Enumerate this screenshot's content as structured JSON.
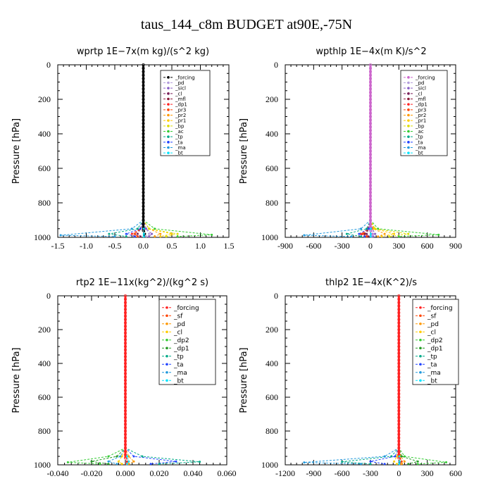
{
  "figure": {
    "title": "taus_144_c8m  BUDGET at90E,-75N"
  },
  "chart_data": [
    {
      "type": "line",
      "title": "wprtp  1E−7x(m kg)/(s^2 kg)",
      "ylabel": "Pressure [hPa]",
      "xlim": [
        -1.5,
        1.5
      ],
      "ylim": [
        1000,
        0
      ],
      "xticks": [
        "-1.5",
        "-1.0",
        "-0.5",
        "0.0",
        "0.5",
        "1.0",
        "1.5"
      ],
      "xtick_values": [
        -1.5,
        -1.0,
        -0.5,
        0.0,
        0.5,
        1.0,
        1.5
      ],
      "yticks": [
        "0",
        "200",
        "400",
        "600",
        "800",
        "1000"
      ],
      "ytick_values": [
        0,
        200,
        400,
        600,
        800,
        1000
      ],
      "legend_position": "top-right",
      "series": [
        {
          "name": "_forcing",
          "color": "#000000",
          "x": [
            0,
            0,
            0.02,
            0.03,
            0.02
          ],
          "y": [
            0,
            900,
            950,
            980,
            995
          ]
        },
        {
          "name": "_pd",
          "color": "#b39ddb",
          "x": [
            0,
            0,
            0.05,
            0.1,
            0.05
          ],
          "y": [
            0,
            900,
            950,
            980,
            995
          ]
        },
        {
          "name": "_sicl",
          "color": "#8a60c8",
          "x": [
            0,
            0,
            0.05,
            0.15,
            0.1
          ],
          "y": [
            0,
            900,
            950,
            980,
            995
          ]
        },
        {
          "name": "_cl",
          "color": "#7a1f5a",
          "x": [
            0,
            0,
            -0.05,
            -0.1,
            -0.05
          ],
          "y": [
            0,
            900,
            950,
            980,
            995
          ]
        },
        {
          "name": "_mfl",
          "color": "#8b1a3a",
          "x": [
            0,
            0,
            -0.05,
            -0.15,
            -0.1
          ],
          "y": [
            0,
            900,
            950,
            980,
            995
          ]
        },
        {
          "name": "_dp1",
          "color": "#ff2222",
          "x": [
            0,
            0,
            -0.05,
            -0.2,
            -0.15
          ],
          "y": [
            0,
            900,
            950,
            980,
            995
          ]
        },
        {
          "name": "_pr3",
          "color": "#ff4400",
          "x": [
            0,
            0,
            -0.05,
            -0.15,
            -0.1
          ],
          "y": [
            0,
            900,
            950,
            980,
            995
          ]
        },
        {
          "name": "_pr2",
          "color": "#ff9900",
          "x": [
            0,
            0,
            0.1,
            0.3,
            0.2
          ],
          "y": [
            0,
            900,
            950,
            980,
            995
          ]
        },
        {
          "name": "_pr1",
          "color": "#ffcc00",
          "x": [
            0,
            0,
            0.1,
            0.5,
            0.3
          ],
          "y": [
            0,
            900,
            950,
            980,
            995
          ]
        },
        {
          "name": "_bp",
          "color": "#dddd00",
          "x": [
            0,
            0,
            0.1,
            0.6,
            0.4
          ],
          "y": [
            0,
            900,
            950,
            980,
            995
          ]
        },
        {
          "name": "_ac",
          "color": "#33cc33",
          "x": [
            0,
            0,
            0.2,
            1.2,
            0.6
          ],
          "y": [
            0,
            900,
            950,
            985,
            995
          ]
        },
        {
          "name": "_tp",
          "color": "#00aa88",
          "x": [
            0,
            0,
            -0.1,
            -0.6,
            -0.3
          ],
          "y": [
            0,
            900,
            950,
            980,
            995
          ]
        },
        {
          "name": "_ta",
          "color": "#2244ff",
          "x": [
            0,
            0,
            -0.05,
            -0.3,
            -0.15
          ],
          "y": [
            0,
            900,
            950,
            980,
            995
          ]
        },
        {
          "name": "_ma",
          "color": "#2299dd",
          "x": [
            0,
            0,
            -0.2,
            -1.45,
            -0.5
          ],
          "y": [
            0,
            900,
            950,
            988,
            995
          ]
        },
        {
          "name": "_bt",
          "color": "#00e5ff",
          "x": [
            0,
            0,
            0.01,
            0.01,
            0.01
          ],
          "y": [
            0,
            900,
            950,
            980,
            995
          ]
        }
      ]
    },
    {
      "type": "line",
      "title": "wpthlp  1E−4x(m K)/s^2",
      "ylabel": "Pressure [hPa]",
      "xlim": [
        -900,
        900
      ],
      "ylim": [
        1000,
        0
      ],
      "xticks": [
        "-900",
        "-600",
        "-300",
        "0",
        "300",
        "600",
        "900"
      ],
      "xtick_values": [
        -900,
        -600,
        -300,
        0,
        300,
        600,
        900
      ],
      "yticks": [
        "0",
        "200",
        "400",
        "600",
        "800",
        "1000"
      ],
      "ytick_values": [
        0,
        200,
        400,
        600,
        800,
        1000
      ],
      "legend_position": "top-right",
      "series": [
        {
          "name": "_forcing",
          "color": "#cc66cc",
          "x": [
            0,
            0,
            10,
            20,
            10
          ],
          "y": [
            0,
            900,
            950,
            980,
            995
          ]
        },
        {
          "name": "_pd",
          "color": "#b39ddb",
          "x": [
            0,
            0,
            20,
            40,
            20
          ],
          "y": [
            0,
            900,
            950,
            980,
            995
          ]
        },
        {
          "name": "_sicl",
          "color": "#8a60c8",
          "x": [
            0,
            0,
            20,
            50,
            30
          ],
          "y": [
            0,
            900,
            950,
            980,
            995
          ]
        },
        {
          "name": "_cl",
          "color": "#7a1f5a",
          "x": [
            0,
            0,
            -20,
            -40,
            -20
          ],
          "y": [
            0,
            900,
            950,
            980,
            995
          ]
        },
        {
          "name": "_mfl",
          "color": "#8b1a3a",
          "x": [
            0,
            0,
            -20,
            -60,
            -30
          ],
          "y": [
            0,
            900,
            950,
            980,
            995
          ]
        },
        {
          "name": "_dp1",
          "color": "#ff2222",
          "x": [
            0,
            0,
            -30,
            -100,
            -60
          ],
          "y": [
            0,
            900,
            950,
            980,
            995
          ]
        },
        {
          "name": "_pr3",
          "color": "#ff4400",
          "x": [
            0,
            0,
            -20,
            -80,
            -40
          ],
          "y": [
            0,
            900,
            950,
            980,
            995
          ]
        },
        {
          "name": "_pr2",
          "color": "#ff9900",
          "x": [
            0,
            0,
            30,
            150,
            80
          ],
          "y": [
            0,
            900,
            950,
            980,
            995
          ]
        },
        {
          "name": "_pr1",
          "color": "#ffcc00",
          "x": [
            0,
            0,
            40,
            250,
            120
          ],
          "y": [
            0,
            900,
            950,
            980,
            995
          ]
        },
        {
          "name": "_bp",
          "color": "#dddd00",
          "x": [
            0,
            0,
            50,
            400,
            200
          ],
          "y": [
            0,
            900,
            950,
            980,
            995
          ]
        },
        {
          "name": "_ac",
          "color": "#33cc33",
          "x": [
            0,
            0,
            80,
            720,
            300
          ],
          "y": [
            0,
            900,
            950,
            985,
            995
          ]
        },
        {
          "name": "_tp",
          "color": "#00aa88",
          "x": [
            0,
            0,
            -40,
            -250,
            -100
          ],
          "y": [
            0,
            900,
            950,
            980,
            995
          ]
        },
        {
          "name": "_ta",
          "color": "#2244ff",
          "x": [
            0,
            0,
            -20,
            -120,
            -60
          ],
          "y": [
            0,
            900,
            950,
            980,
            995
          ]
        },
        {
          "name": "_ma",
          "color": "#2299dd",
          "x": [
            0,
            0,
            -100,
            -700,
            -200
          ],
          "y": [
            0,
            900,
            950,
            988,
            995
          ]
        },
        {
          "name": "_bt",
          "color": "#00e5ff",
          "x": [
            0,
            0,
            2,
            4,
            2
          ],
          "y": [
            0,
            900,
            950,
            980,
            995
          ]
        }
      ]
    },
    {
      "type": "line",
      "title": "rtp2  1E−11x(kg^2)/(kg^2 s)",
      "ylabel": "Pressure [hPa]",
      "xlim": [
        -0.04,
        0.06
      ],
      "ylim": [
        1000,
        0
      ],
      "xticks": [
        "-0.040",
        "-0.020",
        "0.000",
        "0.020",
        "0.040",
        "0.060"
      ],
      "xtick_values": [
        -0.04,
        -0.02,
        0.0,
        0.02,
        0.04,
        0.06
      ],
      "yticks": [
        "0",
        "200",
        "400",
        "600",
        "800",
        "1000"
      ],
      "ytick_values": [
        0,
        200,
        400,
        600,
        800,
        1000
      ],
      "legend_position": "top-right",
      "series": [
        {
          "name": "_forcing",
          "color": "#ff2222",
          "x": [
            0,
            0,
            0.0005,
            0.001,
            0.0005
          ],
          "y": [
            0,
            900,
            950,
            980,
            995
          ]
        },
        {
          "name": "_sf",
          "color": "#ff4400",
          "x": [
            0,
            0,
            0.001,
            0.002,
            0.001
          ],
          "y": [
            0,
            900,
            950,
            980,
            995
          ]
        },
        {
          "name": "_pd",
          "color": "#ff9900",
          "x": [
            0,
            0,
            0.002,
            0.005,
            0.002
          ],
          "y": [
            0,
            900,
            950,
            980,
            995
          ]
        },
        {
          "name": "_cl",
          "color": "#ffcc00",
          "x": [
            0,
            0,
            -0.002,
            -0.004,
            -0.002
          ],
          "y": [
            0,
            900,
            950,
            980,
            995
          ]
        },
        {
          "name": "_dp2",
          "color": "#33cc33",
          "x": [
            0,
            0,
            -0.01,
            -0.034,
            -0.015
          ],
          "y": [
            0,
            900,
            950,
            985,
            995
          ]
        },
        {
          "name": "_dp1",
          "color": "#229922",
          "x": [
            0,
            0,
            -0.005,
            -0.02,
            -0.01
          ],
          "y": [
            0,
            900,
            950,
            980,
            995
          ]
        },
        {
          "name": "_tp",
          "color": "#00aa88",
          "x": [
            0,
            0,
            0.01,
            0.044,
            0.02
          ],
          "y": [
            0,
            900,
            950,
            982,
            995
          ]
        },
        {
          "name": "_ta",
          "color": "#2244ff",
          "x": [
            0,
            0,
            0.005,
            0.03,
            0.015
          ],
          "y": [
            0,
            900,
            950,
            980,
            995
          ]
        },
        {
          "name": "_ma",
          "color": "#2299dd",
          "x": [
            0,
            0,
            -0.003,
            -0.01,
            -0.005
          ],
          "y": [
            0,
            900,
            950,
            980,
            995
          ]
        },
        {
          "name": "_bt",
          "color": "#00e5ff",
          "x": [
            0,
            0,
            0.001,
            0.002,
            0.001
          ],
          "y": [
            0,
            900,
            950,
            980,
            995
          ]
        }
      ]
    },
    {
      "type": "line",
      "title": "thlp2  1E−4x(K^2)/s",
      "ylabel": "Pressure [hPa]",
      "xlim": [
        -1200,
        600
      ],
      "ylim": [
        1000,
        0
      ],
      "xticks": [
        "-1200",
        "-900",
        "-600",
        "-300",
        "0",
        "300",
        "600"
      ],
      "xtick_values": [
        -1200,
        -900,
        -600,
        -300,
        0,
        300,
        600
      ],
      "yticks": [
        "0",
        "200",
        "400",
        "600",
        "800",
        "1000"
      ],
      "ytick_values": [
        0,
        200,
        400,
        600,
        800,
        1000
      ],
      "legend_position": "top-right",
      "series": [
        {
          "name": "_forcing",
          "color": "#ff2222",
          "x": [
            0,
            0,
            10,
            20,
            10
          ],
          "y": [
            0,
            900,
            950,
            980,
            995
          ]
        },
        {
          "name": "_sf",
          "color": "#ff4400",
          "x": [
            0,
            0,
            10,
            30,
            15
          ],
          "y": [
            0,
            900,
            950,
            980,
            995
          ]
        },
        {
          "name": "_pd",
          "color": "#ff9900",
          "x": [
            0,
            0,
            20,
            60,
            30
          ],
          "y": [
            0,
            900,
            950,
            980,
            995
          ]
        },
        {
          "name": "_cl",
          "color": "#ffcc00",
          "x": [
            0,
            0,
            -20,
            -50,
            -20
          ],
          "y": [
            0,
            900,
            950,
            980,
            995
          ]
        },
        {
          "name": "_dp2",
          "color": "#33cc33",
          "x": [
            0,
            0,
            60,
            500,
            200
          ],
          "y": [
            0,
            900,
            950,
            985,
            995
          ]
        },
        {
          "name": "_dp1",
          "color": "#229922",
          "x": [
            0,
            0,
            30,
            200,
            100
          ],
          "y": [
            0,
            900,
            950,
            980,
            995
          ]
        },
        {
          "name": "_tp",
          "color": "#00aa88",
          "x": [
            0,
            0,
            -80,
            -600,
            -300
          ],
          "y": [
            0,
            900,
            950,
            982,
            995
          ]
        },
        {
          "name": "_ta",
          "color": "#2244ff",
          "x": [
            0,
            0,
            -40,
            -300,
            -150
          ],
          "y": [
            0,
            900,
            950,
            980,
            995
          ]
        },
        {
          "name": "_ma",
          "color": "#2299dd",
          "x": [
            0,
            0,
            -150,
            -1000,
            -400
          ],
          "y": [
            0,
            900,
            950,
            986,
            995
          ]
        },
        {
          "name": "_bt",
          "color": "#00e5ff",
          "x": [
            0,
            0,
            5,
            10,
            5
          ],
          "y": [
            0,
            900,
            950,
            980,
            995
          ]
        }
      ]
    }
  ]
}
